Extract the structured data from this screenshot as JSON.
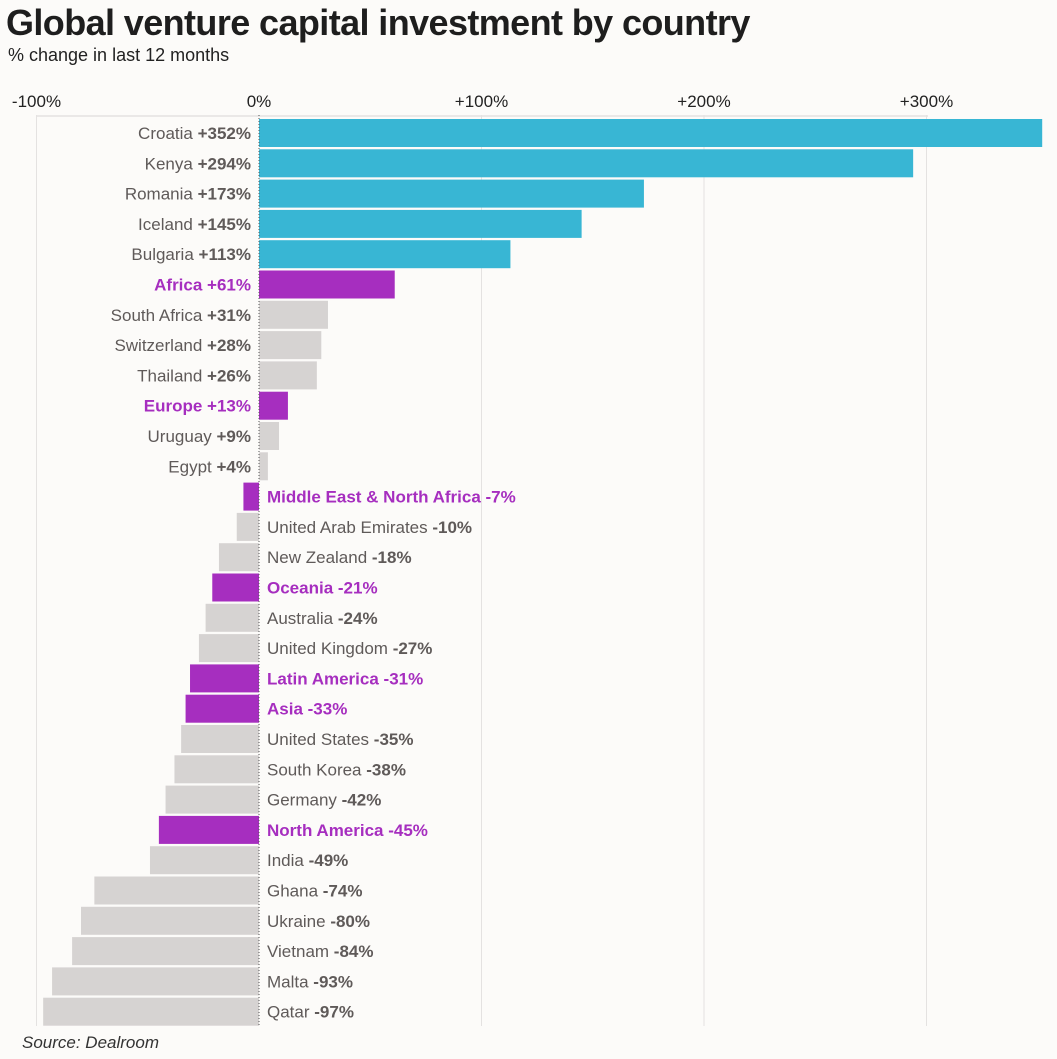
{
  "chart_data": {
    "type": "bar",
    "orientation": "horizontal",
    "title": "Global venture capital investment by country",
    "subtitle": "% change in last 12 months",
    "source": "Source: Dealroom",
    "xlim": [
      -100,
      352
    ],
    "xticks": [
      {
        "value": -100,
        "label": "-100%"
      },
      {
        "value": 0,
        "label": "0%"
      },
      {
        "value": 100,
        "label": "+100%"
      },
      {
        "value": 200,
        "label": "+200%"
      },
      {
        "value": 300,
        "label": "+300%"
      }
    ],
    "colors": {
      "top": "#38b6d4",
      "region": "#a62ebf",
      "other": "#d6d3d2",
      "text": "#5f5a59",
      "region_text": "#a62ebf",
      "grid": "#e4e2e1",
      "zero_line": "#555555"
    },
    "bars": [
      {
        "name": "Croatia",
        "value": 352,
        "display": "+352%",
        "group": "top"
      },
      {
        "name": "Kenya",
        "value": 294,
        "display": "+294%",
        "group": "top"
      },
      {
        "name": "Romania",
        "value": 173,
        "display": "+173%",
        "group": "top"
      },
      {
        "name": "Iceland",
        "value": 145,
        "display": "+145%",
        "group": "top"
      },
      {
        "name": "Bulgaria",
        "value": 113,
        "display": "+113%",
        "group": "top"
      },
      {
        "name": "Africa",
        "value": 61,
        "display": "+61%",
        "group": "region"
      },
      {
        "name": "South Africa",
        "value": 31,
        "display": "+31%",
        "group": "other"
      },
      {
        "name": "Switzerland",
        "value": 28,
        "display": "+28%",
        "group": "other"
      },
      {
        "name": "Thailand",
        "value": 26,
        "display": "+26%",
        "group": "other"
      },
      {
        "name": "Europe",
        "value": 13,
        "display": "+13%",
        "group": "region"
      },
      {
        "name": "Uruguay",
        "value": 9,
        "display": "+9%",
        "group": "other"
      },
      {
        "name": "Egypt",
        "value": 4,
        "display": "+4%",
        "group": "other"
      },
      {
        "name": "Middle East & North Africa",
        "value": -7,
        "display": "-7%",
        "group": "region"
      },
      {
        "name": "United Arab Emirates",
        "value": -10,
        "display": "-10%",
        "group": "other"
      },
      {
        "name": "New Zealand",
        "value": -18,
        "display": "-18%",
        "group": "other"
      },
      {
        "name": "Oceania",
        "value": -21,
        "display": "-21%",
        "group": "region"
      },
      {
        "name": "Australia",
        "value": -24,
        "display": "-24%",
        "group": "other"
      },
      {
        "name": "United Kingdom",
        "value": -27,
        "display": "-27%",
        "group": "other"
      },
      {
        "name": "Latin America",
        "value": -31,
        "display": "-31%",
        "group": "region"
      },
      {
        "name": "Asia",
        "value": -33,
        "display": "-33%",
        "group": "region"
      },
      {
        "name": "United States",
        "value": -35,
        "display": "-35%",
        "group": "other"
      },
      {
        "name": "South Korea",
        "value": -38,
        "display": "-38%",
        "group": "other"
      },
      {
        "name": "Germany",
        "value": -42,
        "display": "-42%",
        "group": "other"
      },
      {
        "name": "North America",
        "value": -45,
        "display": "-45%",
        "group": "region"
      },
      {
        "name": "India",
        "value": -49,
        "display": "-49%",
        "group": "other"
      },
      {
        "name": "Ghana",
        "value": -74,
        "display": "-74%",
        "group": "other"
      },
      {
        "name": "Ukraine",
        "value": -80,
        "display": "-80%",
        "group": "other"
      },
      {
        "name": "Vietnam",
        "value": -84,
        "display": "-84%",
        "group": "other"
      },
      {
        "name": "Malta",
        "value": -93,
        "display": "-93%",
        "group": "other"
      },
      {
        "name": "Qatar",
        "value": -97,
        "display": "-97%",
        "group": "other"
      }
    ]
  }
}
